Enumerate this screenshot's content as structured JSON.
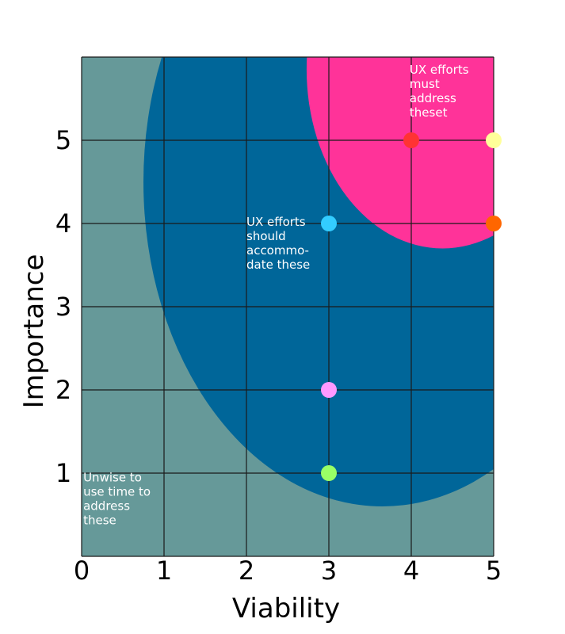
{
  "chart_data": {
    "type": "scatter",
    "title": "",
    "xlabel": "Viability",
    "ylabel": "Importance",
    "xlim": [
      0,
      5
    ],
    "ylim": [
      0,
      6
    ],
    "x_ticks": [
      0,
      1,
      2,
      3,
      4,
      5
    ],
    "y_ticks": [
      1,
      2,
      3,
      4,
      5
    ],
    "grid": true,
    "regions": [
      {
        "label_lines": [
          "Unwise to",
          "use time to",
          "address",
          "these"
        ],
        "color": "#669999",
        "shape": "background",
        "label_at": [
          0.02,
          0.9
        ]
      },
      {
        "label_lines": [
          "UX efforts",
          "should",
          "accommo-",
          "date these"
        ],
        "color": "#006699",
        "shape": "ellipse",
        "center": [
          3.65,
          4.5
        ],
        "radii": [
          2.9,
          3.9
        ],
        "label_at": [
          2.0,
          3.97
        ]
      },
      {
        "label_lines": [
          "UX efforts",
          "must",
          "address",
          "theset"
        ],
        "color": "#ff3399",
        "shape": "ellipse",
        "center": [
          4.38,
          5.85
        ],
        "radii": [
          1.65,
          2.15
        ],
        "label_at": [
          3.98,
          5.8
        ]
      }
    ],
    "points": [
      {
        "x": 3,
        "y": 1,
        "color": "#99ff66"
      },
      {
        "x": 3,
        "y": 2,
        "color": "#ff99ff"
      },
      {
        "x": 3,
        "y": 4,
        "color": "#33ccff"
      },
      {
        "x": 4,
        "y": 5,
        "color": "#ff3333"
      },
      {
        "x": 5,
        "y": 5,
        "color": "#ffff99"
      },
      {
        "x": 5,
        "y": 4,
        "color": "#ff6600"
      }
    ]
  }
}
